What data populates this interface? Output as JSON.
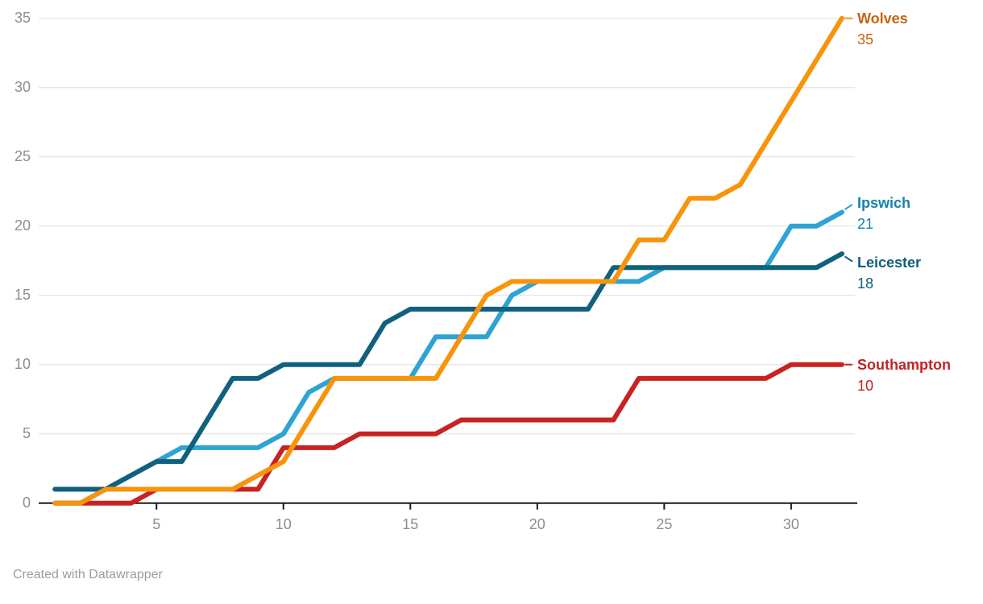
{
  "chart_data": {
    "type": "line",
    "title": "",
    "x": [
      1,
      2,
      3,
      4,
      5,
      6,
      7,
      8,
      9,
      10,
      11,
      12,
      13,
      14,
      15,
      16,
      17,
      18,
      19,
      20,
      21,
      22,
      23,
      24,
      25,
      26,
      27,
      28,
      29,
      30,
      31,
      32
    ],
    "xlim": [
      1,
      32
    ],
    "ylim": [
      0,
      35
    ],
    "x_ticks": [
      5,
      10,
      15,
      20,
      25,
      30
    ],
    "y_ticks": [
      0,
      5,
      10,
      15,
      20,
      25,
      30,
      35
    ],
    "grid": "horizontal",
    "legend_position": "right-edge-direct-labels",
    "grid_color": "#e6e6e6",
    "axis_color": "#1a1a1a",
    "tick_label_color": "#8d8d8d",
    "series": [
      {
        "name": "Southampton",
        "color": "#c82322",
        "label_color": "#c42222",
        "final_value": 10,
        "values": [
          0,
          0,
          0,
          0,
          1,
          1,
          1,
          1,
          1,
          4,
          4,
          4,
          5,
          5,
          5,
          5,
          6,
          6,
          6,
          6,
          6,
          6,
          6,
          9,
          9,
          9,
          9,
          9,
          9,
          10,
          10,
          10
        ]
      },
      {
        "name": "Ipswich",
        "color": "#2ea3d4",
        "label_color": "#1781aa",
        "final_value": 21,
        "values": [
          0,
          0,
          1,
          2,
          3,
          4,
          4,
          4,
          4,
          5,
          8,
          9,
          9,
          9,
          9,
          12,
          12,
          12,
          15,
          16,
          16,
          16,
          16,
          16,
          17,
          17,
          17,
          17,
          17,
          20,
          20,
          21
        ]
      },
      {
        "name": "Leicester",
        "color": "#10607e",
        "label_color": "#10607e",
        "final_value": 18,
        "values": [
          1,
          1,
          1,
          2,
          3,
          3,
          6,
          9,
          9,
          10,
          10,
          10,
          10,
          13,
          14,
          14,
          14,
          14,
          14,
          14,
          14,
          14,
          17,
          17,
          17,
          17,
          17,
          17,
          17,
          17,
          17,
          18
        ]
      },
      {
        "name": "Wolves",
        "color": "#f7940b",
        "label_color": "#c4650d",
        "final_value": 35,
        "values": [
          0,
          0,
          1,
          1,
          1,
          1,
          1,
          1,
          2,
          3,
          6,
          9,
          9,
          9,
          9,
          9,
          12,
          15,
          16,
          16,
          16,
          16,
          16,
          19,
          19,
          22,
          22,
          23,
          26,
          29,
          32,
          35
        ]
      }
    ]
  },
  "footer": {
    "credit": "Created with Datawrapper"
  }
}
